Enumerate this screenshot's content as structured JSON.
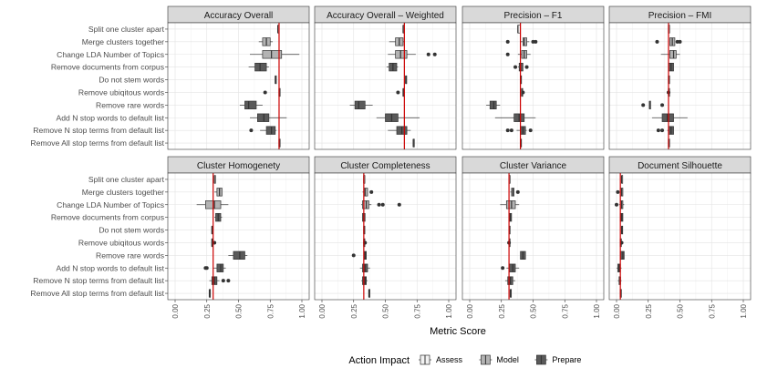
{
  "chart_data": {
    "type": "boxplot",
    "xlabel": "Metric Score",
    "xlim": [
      0,
      1
    ],
    "x_ticks": [
      "0.00",
      "0.25",
      "0.50",
      "0.75",
      "1.00"
    ],
    "categories": [
      "Split one cluster apart",
      "Merge clusters together",
      "Change LDA Number of Topics",
      "Remove documents from corpus",
      "Do not stem words",
      "Remove ubiqitous words",
      "Remove rare words",
      "Add N stop words to default list",
      "Remove N stop terms from default list",
      "Remove All stop terms from default list"
    ],
    "category_impact": [
      "Assess",
      "Model",
      "Model",
      "Prepare",
      "Prepare",
      "Prepare",
      "Prepare",
      "Prepare",
      "Prepare",
      "Prepare"
    ],
    "legend": {
      "title": "Action Impact",
      "position": "bottom",
      "items": [
        {
          "label": "Assess",
          "color": "#f2f2f2"
        },
        {
          "label": "Model",
          "color": "#b3b3b3"
        },
        {
          "label": "Prepare",
          "color": "#5a5a5a"
        }
      ]
    },
    "colors": {
      "Assess": "#f2f2f2",
      "Model": "#b3b3b3",
      "Prepare": "#5a5a5a",
      "reference": "#cc0000"
    },
    "panels": [
      {
        "title": "Accuracy Overall",
        "ref": 0.82,
        "boxes": [
          {
            "min": 0.81,
            "q1": 0.81,
            "med": 0.81,
            "q3": 0.81,
            "max": 0.81,
            "out": []
          },
          {
            "min": 0.66,
            "q1": 0.69,
            "med": 0.72,
            "q3": 0.75,
            "max": 0.77,
            "out": []
          },
          {
            "min": 0.59,
            "q1": 0.69,
            "med": 0.76,
            "q3": 0.84,
            "max": 0.98,
            "out": []
          },
          {
            "min": 0.58,
            "q1": 0.63,
            "med": 0.67,
            "q3": 0.72,
            "max": 0.74,
            "out": []
          },
          {
            "min": 0.79,
            "q1": 0.79,
            "med": 0.79,
            "q3": 0.79,
            "max": 0.79,
            "out": []
          },
          {
            "min": 0.82,
            "q1": 0.82,
            "med": 0.82,
            "q3": 0.82,
            "max": 0.82,
            "out": [
              0.71
            ]
          },
          {
            "min": 0.51,
            "q1": 0.55,
            "med": 0.58,
            "q3": 0.64,
            "max": 0.69,
            "out": []
          },
          {
            "min": 0.59,
            "q1": 0.65,
            "med": 0.7,
            "q3": 0.74,
            "max": 0.88,
            "out": []
          },
          {
            "min": 0.67,
            "q1": 0.72,
            "med": 0.76,
            "q3": 0.79,
            "max": 0.8,
            "out": [
              0.6
            ]
          },
          {
            "min": 0.82,
            "q1": 0.82,
            "med": 0.82,
            "q3": 0.82,
            "max": 0.82,
            "out": []
          }
        ]
      },
      {
        "title": "Accuracy Overall – Weighted",
        "ref": 0.65,
        "boxes": [
          {
            "min": 0.64,
            "q1": 0.64,
            "med": 0.64,
            "q3": 0.64,
            "max": 0.64,
            "out": []
          },
          {
            "min": 0.53,
            "q1": 0.58,
            "med": 0.61,
            "q3": 0.64,
            "max": 0.65,
            "out": []
          },
          {
            "min": 0.52,
            "q1": 0.58,
            "med": 0.62,
            "q3": 0.67,
            "max": 0.74,
            "out": [
              0.84,
              0.89
            ]
          },
          {
            "min": 0.51,
            "q1": 0.53,
            "med": 0.56,
            "q3": 0.59,
            "max": 0.6,
            "out": []
          },
          {
            "min": 0.66,
            "q1": 0.66,
            "med": 0.66,
            "q3": 0.66,
            "max": 0.66,
            "out": []
          },
          {
            "min": 0.64,
            "q1": 0.64,
            "med": 0.64,
            "q3": 0.64,
            "max": 0.64,
            "out": [
              0.6
            ]
          },
          {
            "min": 0.22,
            "q1": 0.26,
            "med": 0.29,
            "q3": 0.34,
            "max": 0.4,
            "out": []
          },
          {
            "min": 0.43,
            "q1": 0.5,
            "med": 0.55,
            "q3": 0.6,
            "max": 0.77,
            "out": []
          },
          {
            "min": 0.52,
            "q1": 0.59,
            "med": 0.63,
            "q3": 0.67,
            "max": 0.7,
            "out": []
          },
          {
            "min": 0.72,
            "q1": 0.72,
            "med": 0.72,
            "q3": 0.72,
            "max": 0.72,
            "out": []
          }
        ]
      },
      {
        "title": "Precision – F1",
        "ref": 0.4,
        "boxes": [
          {
            "min": 0.38,
            "q1": 0.38,
            "med": 0.38,
            "q3": 0.4,
            "max": 0.4,
            "out": []
          },
          {
            "min": 0.4,
            "q1": 0.42,
            "med": 0.43,
            "q3": 0.45,
            "max": 0.47,
            "out": [
              0.3,
              0.52,
              0.5
            ]
          },
          {
            "min": 0.38,
            "q1": 0.41,
            "med": 0.43,
            "q3": 0.45,
            "max": 0.48,
            "out": [
              0.3
            ]
          },
          {
            "min": 0.38,
            "q1": 0.39,
            "med": 0.4,
            "q3": 0.42,
            "max": 0.42,
            "out": [
              0.36,
              0.45
            ]
          },
          {
            "min": 0.4,
            "q1": 0.4,
            "med": 0.4,
            "q3": 0.4,
            "max": 0.4,
            "out": []
          },
          {
            "min": 0.41,
            "q1": 0.41,
            "med": 0.41,
            "q3": 0.41,
            "max": 0.41,
            "out": [
              0.42
            ]
          },
          {
            "min": 0.13,
            "q1": 0.16,
            "med": 0.19,
            "q3": 0.21,
            "max": 0.24,
            "out": []
          },
          {
            "min": 0.2,
            "q1": 0.35,
            "med": 0.39,
            "q3": 0.43,
            "max": 0.52,
            "out": []
          },
          {
            "min": 0.37,
            "q1": 0.4,
            "med": 0.42,
            "q3": 0.44,
            "max": 0.45,
            "out": [
              0.3,
              0.33,
              0.48
            ]
          },
          {
            "min": 0.4,
            "q1": 0.4,
            "med": 0.4,
            "q3": 0.4,
            "max": 0.4,
            "out": []
          }
        ]
      },
      {
        "title": "Precision – FMI",
        "ref": 0.41,
        "boxes": [
          {
            "min": 0.41,
            "q1": 0.41,
            "med": 0.41,
            "q3": 0.41,
            "max": 0.41,
            "out": []
          },
          {
            "min": 0.42,
            "q1": 0.42,
            "med": 0.44,
            "q3": 0.46,
            "max": 0.46,
            "out": [
              0.32,
              0.5,
              0.48
            ]
          },
          {
            "min": 0.35,
            "q1": 0.42,
            "med": 0.45,
            "q3": 0.47,
            "max": 0.5,
            "out": []
          },
          {
            "min": 0.41,
            "q1": 0.41,
            "med": 0.43,
            "q3": 0.45,
            "max": 0.45,
            "out": []
          },
          {
            "min": 0.41,
            "q1": 0.41,
            "med": 0.41,
            "q3": 0.41,
            "max": 0.41,
            "out": []
          },
          {
            "min": 0.41,
            "q1": 0.41,
            "med": 0.41,
            "q3": 0.41,
            "max": 0.41,
            "out": [
              0.41
            ]
          },
          {
            "min": 0.26,
            "q1": 0.26,
            "med": 0.26,
            "q3": 0.26,
            "max": 0.26,
            "out": [
              0.21,
              0.36
            ]
          },
          {
            "min": 0.28,
            "q1": 0.36,
            "med": 0.4,
            "q3": 0.45,
            "max": 0.56,
            "out": []
          },
          {
            "min": 0.4,
            "q1": 0.41,
            "med": 0.43,
            "q3": 0.45,
            "max": 0.45,
            "out": [
              0.33,
              0.36
            ]
          },
          {
            "min": 0.41,
            "q1": 0.41,
            "med": 0.41,
            "q3": 0.41,
            "max": 0.41,
            "out": []
          }
        ]
      },
      {
        "title": "Cluster Homogenety",
        "ref": 0.3,
        "boxes": [
          {
            "min": 0.31,
            "q1": 0.31,
            "med": 0.31,
            "q3": 0.31,
            "max": 0.31,
            "out": []
          },
          {
            "min": 0.31,
            "q1": 0.33,
            "med": 0.35,
            "q3": 0.37,
            "max": 0.37,
            "out": []
          },
          {
            "min": 0.17,
            "q1": 0.24,
            "med": 0.31,
            "q3": 0.36,
            "max": 0.42,
            "out": []
          },
          {
            "min": 0.31,
            "q1": 0.32,
            "med": 0.34,
            "q3": 0.36,
            "max": 0.37,
            "out": []
          },
          {
            "min": 0.29,
            "q1": 0.29,
            "med": 0.29,
            "q3": 0.29,
            "max": 0.29,
            "out": []
          },
          {
            "min": 0.29,
            "q1": 0.29,
            "med": 0.29,
            "q3": 0.29,
            "max": 0.29,
            "out": [
              0.31
            ]
          },
          {
            "min": 0.42,
            "q1": 0.46,
            "med": 0.51,
            "q3": 0.55,
            "max": 0.57,
            "out": []
          },
          {
            "min": 0.3,
            "q1": 0.33,
            "med": 0.36,
            "q3": 0.38,
            "max": 0.4,
            "out": [
              0.24,
              0.25
            ]
          },
          {
            "min": 0.27,
            "q1": 0.29,
            "med": 0.31,
            "q3": 0.33,
            "max": 0.35,
            "out": [
              0.38,
              0.42
            ]
          },
          {
            "min": 0.27,
            "q1": 0.27,
            "med": 0.27,
            "q3": 0.27,
            "max": 0.27,
            "out": []
          }
        ]
      },
      {
        "title": "Cluster Completeness",
        "ref": 0.33,
        "boxes": [
          {
            "min": 0.33,
            "q1": 0.33,
            "med": 0.33,
            "q3": 0.33,
            "max": 0.33,
            "out": []
          },
          {
            "min": 0.32,
            "q1": 0.33,
            "med": 0.34,
            "q3": 0.36,
            "max": 0.36,
            "out": [
              0.39
            ]
          },
          {
            "min": 0.31,
            "q1": 0.32,
            "med": 0.35,
            "q3": 0.37,
            "max": 0.39,
            "out": [
              0.45,
              0.48,
              0.61
            ]
          },
          {
            "min": 0.32,
            "q1": 0.32,
            "med": 0.33,
            "q3": 0.34,
            "max": 0.34,
            "out": []
          },
          {
            "min": 0.33,
            "q1": 0.33,
            "med": 0.33,
            "q3": 0.33,
            "max": 0.33,
            "out": []
          },
          {
            "min": 0.33,
            "q1": 0.33,
            "med": 0.33,
            "q3": 0.33,
            "max": 0.33,
            "out": [
              0.34
            ]
          },
          {
            "min": 0.33,
            "q1": 0.33,
            "med": 0.34,
            "q3": 0.35,
            "max": 0.35,
            "out": [
              0.25
            ]
          },
          {
            "min": 0.3,
            "q1": 0.32,
            "med": 0.34,
            "q3": 0.36,
            "max": 0.38,
            "out": []
          },
          {
            "min": 0.31,
            "q1": 0.32,
            "med": 0.34,
            "q3": 0.35,
            "max": 0.36,
            "out": []
          },
          {
            "min": 0.37,
            "q1": 0.37,
            "med": 0.37,
            "q3": 0.37,
            "max": 0.37,
            "out": []
          }
        ]
      },
      {
        "title": "Cluster Variance",
        "ref": 0.31,
        "boxes": [
          {
            "min": 0.31,
            "q1": 0.31,
            "med": 0.31,
            "q3": 0.31,
            "max": 0.31,
            "out": []
          },
          {
            "min": 0.32,
            "q1": 0.33,
            "med": 0.34,
            "q3": 0.35,
            "max": 0.35,
            "out": [
              0.38
            ]
          },
          {
            "min": 0.24,
            "q1": 0.29,
            "med": 0.33,
            "q3": 0.36,
            "max": 0.39,
            "out": []
          },
          {
            "min": 0.31,
            "q1": 0.31,
            "med": 0.32,
            "q3": 0.33,
            "max": 0.33,
            "out": []
          },
          {
            "min": 0.31,
            "q1": 0.31,
            "med": 0.31,
            "q3": 0.31,
            "max": 0.31,
            "out": []
          },
          {
            "min": 0.31,
            "q1": 0.31,
            "med": 0.31,
            "q3": 0.31,
            "max": 0.31,
            "out": [
              0.31
            ]
          },
          {
            "min": 0.4,
            "q1": 0.4,
            "med": 0.42,
            "q3": 0.44,
            "max": 0.44,
            "out": []
          },
          {
            "min": 0.29,
            "q1": 0.31,
            "med": 0.34,
            "q3": 0.36,
            "max": 0.39,
            "out": [
              0.26
            ]
          },
          {
            "min": 0.28,
            "q1": 0.3,
            "med": 0.32,
            "q3": 0.34,
            "max": 0.36,
            "out": []
          },
          {
            "min": 0.32,
            "q1": 0.32,
            "med": 0.32,
            "q3": 0.32,
            "max": 0.32,
            "out": []
          }
        ]
      },
      {
        "title": "Document Silhouette",
        "ref": 0.03,
        "boxes": [
          {
            "min": 0.04,
            "q1": 0.04,
            "med": 0.04,
            "q3": 0.04,
            "max": 0.04,
            "out": []
          },
          {
            "min": 0.03,
            "q1": 0.03,
            "med": 0.04,
            "q3": 0.05,
            "max": 0.05,
            "out": [
              0.01
            ]
          },
          {
            "min": 0.02,
            "q1": 0.03,
            "med": 0.04,
            "q3": 0.05,
            "max": 0.06,
            "out": [
              0.0
            ]
          },
          {
            "min": 0.03,
            "q1": 0.03,
            "med": 0.04,
            "q3": 0.05,
            "max": 0.05,
            "out": []
          },
          {
            "min": 0.04,
            "q1": 0.04,
            "med": 0.04,
            "q3": 0.04,
            "max": 0.04,
            "out": []
          },
          {
            "min": 0.03,
            "q1": 0.03,
            "med": 0.03,
            "q3": 0.03,
            "max": 0.03,
            "out": [
              0.04
            ]
          },
          {
            "min": 0.03,
            "q1": 0.03,
            "med": 0.05,
            "q3": 0.06,
            "max": 0.06,
            "out": []
          },
          {
            "min": 0.0,
            "q1": 0.01,
            "med": 0.02,
            "q3": 0.03,
            "max": 0.04,
            "out": []
          },
          {
            "min": 0.01,
            "q1": 0.02,
            "med": 0.03,
            "q3": 0.03,
            "max": 0.04,
            "out": []
          },
          {
            "min": 0.03,
            "q1": 0.03,
            "med": 0.03,
            "q3": 0.03,
            "max": 0.03,
            "out": []
          }
        ]
      }
    ]
  }
}
